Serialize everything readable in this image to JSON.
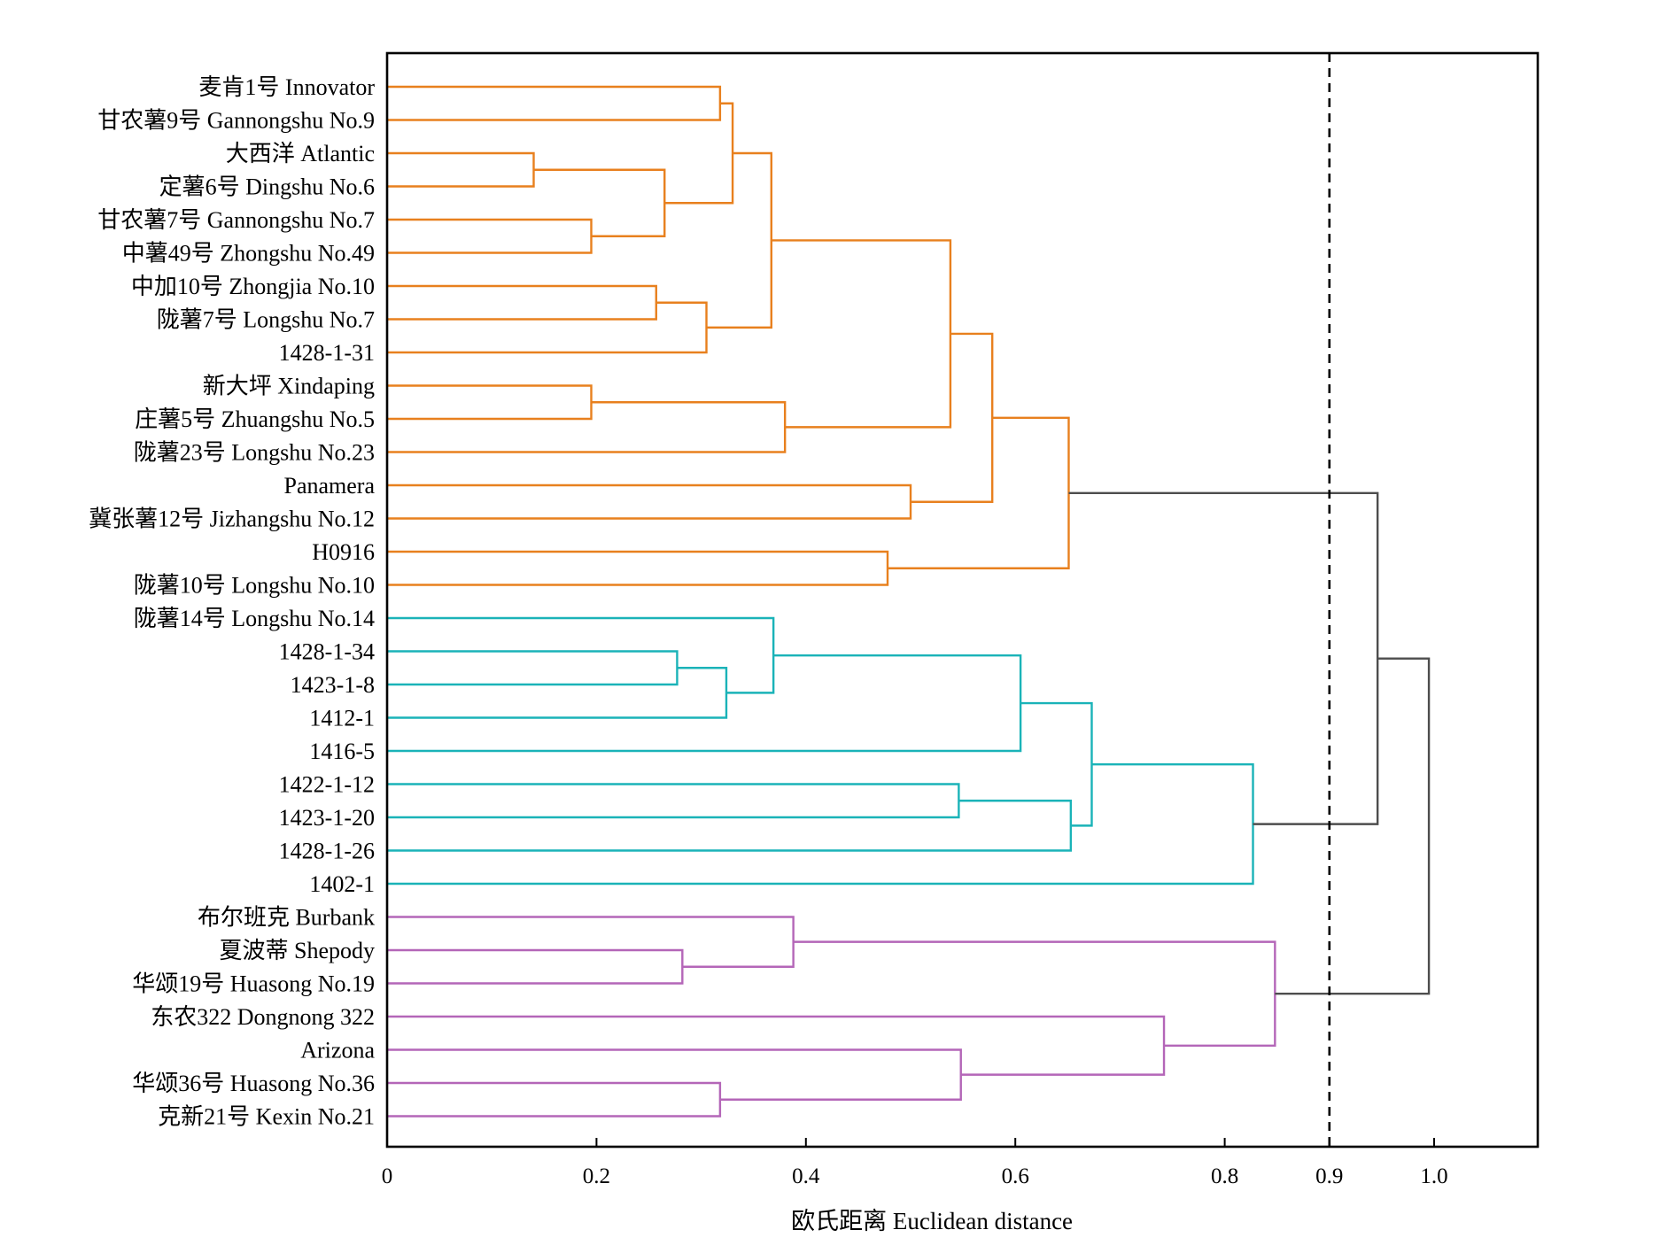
{
  "chart_data": {
    "type": "dendrogram",
    "xlabel": "欧氏距离 Euclidean distance",
    "xlim": [
      0,
      1.1
    ],
    "x_ticks": [
      {
        "value": 0,
        "label": "0"
      },
      {
        "value": 0.2,
        "label": "0.2"
      },
      {
        "value": 0.4,
        "label": "0.4"
      },
      {
        "value": 0.6,
        "label": "0.6"
      },
      {
        "value": 0.8,
        "label": "0.8"
      },
      {
        "value": 0.9,
        "label": "0.9",
        "color": "#e8191c"
      },
      {
        "value": 1.0,
        "label": "1.0"
      }
    ],
    "cut_threshold": 0.9,
    "colors": {
      "group1": "#e8801e",
      "group2": "#1ab3b8",
      "group3": "#b466b8",
      "link": "#4d4d4d",
      "cut_line": "#000000"
    },
    "leaves": [
      "麦肯1号 Innovator",
      "甘农薯9号 Gannongshu No.9",
      "大西洋 Atlantic",
      "定薯6号 Dingshu No.6",
      "甘农薯7号 Gannongshu No.7",
      "中薯49号 Zhongshu No.49",
      "中加10号 Zhongjia No.10",
      "陇薯7号 Longshu No.7",
      "1428-1-31",
      "新大坪 Xindaping",
      "庄薯5号 Zhuangshu No.5",
      "陇薯23号 Longshu No.23",
      "Panamera",
      "冀张薯12号 Jizhangshu No.12",
      "H0916",
      "陇薯10号 Longshu No.10",
      "陇薯14号 Longshu No.14",
      "1428-1-34",
      "1423-1-8",
      "1412-1",
      "1416-5",
      "1422-1-12",
      "1423-1-20",
      "1428-1-26",
      "1402-1",
      "布尔班克 Burbank",
      "夏波蒂 Shepody",
      "华颂19号 Huasong No.19",
      "东农322 Dongnong 322",
      "Arizona",
      "华颂36号 Huasong No.36",
      "克新21号 Kexin No.21"
    ],
    "merges": [
      {
        "id": "m1",
        "left": 0,
        "right": 1,
        "height": 0.318,
        "group": "group1"
      },
      {
        "id": "m2",
        "left": 2,
        "right": 3,
        "height": 0.14,
        "group": "group1"
      },
      {
        "id": "m3",
        "left": 4,
        "right": 5,
        "height": 0.195,
        "group": "group1"
      },
      {
        "id": "m4",
        "left": "m2",
        "right": "m3",
        "height": 0.265,
        "group": "group1"
      },
      {
        "id": "m5",
        "left": "m1",
        "right": "m4",
        "height": 0.33,
        "group": "group1"
      },
      {
        "id": "m6",
        "left": 6,
        "right": 7,
        "height": 0.257,
        "group": "group1"
      },
      {
        "id": "m7",
        "left": "m6",
        "right": 8,
        "height": 0.305,
        "group": "group1"
      },
      {
        "id": "m8",
        "left": "m5",
        "right": "m7",
        "height": 0.367,
        "group": "group1"
      },
      {
        "id": "m9",
        "left": 9,
        "right": 10,
        "height": 0.195,
        "group": "group1"
      },
      {
        "id": "m10",
        "left": "m9",
        "right": 11,
        "height": 0.38,
        "group": "group1"
      },
      {
        "id": "m11",
        "left": "m8",
        "right": "m10",
        "height": 0.538,
        "group": "group1"
      },
      {
        "id": "m12",
        "left": 12,
        "right": 13,
        "height": 0.5,
        "group": "group1"
      },
      {
        "id": "m13",
        "left": "m11",
        "right": "m12",
        "height": 0.578,
        "group": "group1"
      },
      {
        "id": "m14",
        "left": 14,
        "right": 15,
        "height": 0.478,
        "group": "group1"
      },
      {
        "id": "m15",
        "left": "m13",
        "right": "m14",
        "height": 0.651,
        "group": "group1"
      },
      {
        "id": "m16",
        "left": 17,
        "right": 18,
        "height": 0.277,
        "group": "group2"
      },
      {
        "id": "m17",
        "left": "m16",
        "right": 19,
        "height": 0.324,
        "group": "group2"
      },
      {
        "id": "m18",
        "left": 16,
        "right": "m17",
        "height": 0.369,
        "group": "group2"
      },
      {
        "id": "m19",
        "left": "m18",
        "right": 20,
        "height": 0.605,
        "group": "group2"
      },
      {
        "id": "m20",
        "left": 21,
        "right": 22,
        "height": 0.546,
        "group": "group2"
      },
      {
        "id": "m21",
        "left": "m20",
        "right": 23,
        "height": 0.653,
        "group": "group2"
      },
      {
        "id": "m22",
        "left": "m19",
        "right": "m21",
        "height": 0.673,
        "group": "group2"
      },
      {
        "id": "m23",
        "left": "m22",
        "right": 24,
        "height": 0.827,
        "group": "group2"
      },
      {
        "id": "m24",
        "left": 26,
        "right": 27,
        "height": 0.282,
        "group": "group3"
      },
      {
        "id": "m25",
        "left": 25,
        "right": "m24",
        "height": 0.388,
        "group": "group3"
      },
      {
        "id": "m26",
        "left": 30,
        "right": 31,
        "height": 0.318,
        "group": "group3"
      },
      {
        "id": "m27",
        "left": 29,
        "right": "m26",
        "height": 0.548,
        "group": "group3"
      },
      {
        "id": "m28",
        "left": 28,
        "right": "m27",
        "height": 0.742,
        "group": "group3"
      },
      {
        "id": "m29",
        "left": "m25",
        "right": "m28",
        "height": 0.848,
        "group": "group3"
      },
      {
        "id": "m30",
        "left": "m15",
        "right": "m23",
        "height": 0.946,
        "group": "link"
      },
      {
        "id": "m31",
        "left": "m30",
        "right": "m29",
        "height": 0.995,
        "group": "link"
      }
    ]
  }
}
